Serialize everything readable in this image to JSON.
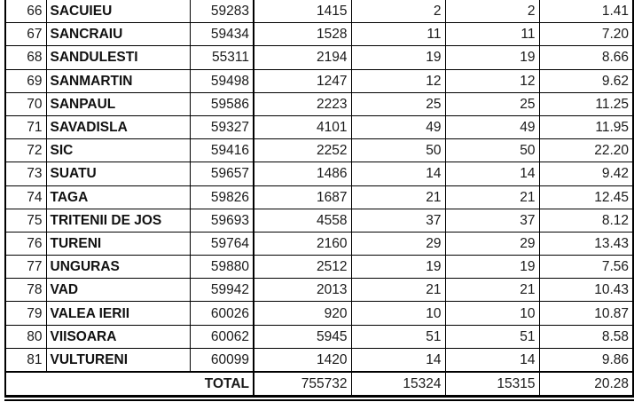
{
  "rows": [
    {
      "nr": "66",
      "name": "SACUIEU",
      "code": "59283",
      "c1": "1415",
      "c2": "2",
      "c3": "2",
      "c4": "1.41"
    },
    {
      "nr": "67",
      "name": "SANCRAIU",
      "code": "59434",
      "c1": "1528",
      "c2": "11",
      "c3": "11",
      "c4": "7.20"
    },
    {
      "nr": "68",
      "name": "SANDULESTI",
      "code": "55311",
      "c1": "2194",
      "c2": "19",
      "c3": "19",
      "c4": "8.66"
    },
    {
      "nr": "69",
      "name": "SANMARTIN",
      "code": "59498",
      "c1": "1247",
      "c2": "12",
      "c3": "12",
      "c4": "9.62"
    },
    {
      "nr": "70",
      "name": "SANPAUL",
      "code": "59586",
      "c1": "2223",
      "c2": "25",
      "c3": "25",
      "c4": "11.25"
    },
    {
      "nr": "71",
      "name": "SAVADISLA",
      "code": "59327",
      "c1": "4101",
      "c2": "49",
      "c3": "49",
      "c4": "11.95"
    },
    {
      "nr": "72",
      "name": "SIC",
      "code": "59416",
      "c1": "2252",
      "c2": "50",
      "c3": "50",
      "c4": "22.20"
    },
    {
      "nr": "73",
      "name": "SUATU",
      "code": "59657",
      "c1": "1486",
      "c2": "14",
      "c3": "14",
      "c4": "9.42"
    },
    {
      "nr": "74",
      "name": "TAGA",
      "code": "59826",
      "c1": "1687",
      "c2": "21",
      "c3": "21",
      "c4": "12.45"
    },
    {
      "nr": "75",
      "name": "TRITENII DE JOS",
      "code": "59693",
      "c1": "4558",
      "c2": "37",
      "c3": "37",
      "c4": "8.12"
    },
    {
      "nr": "76",
      "name": "TURENI",
      "code": "59764",
      "c1": "2160",
      "c2": "29",
      "c3": "29",
      "c4": "13.43"
    },
    {
      "nr": "77",
      "name": "UNGURAS",
      "code": "59880",
      "c1": "2512",
      "c2": "19",
      "c3": "19",
      "c4": "7.56"
    },
    {
      "nr": "78",
      "name": "VAD",
      "code": "59942",
      "c1": "2013",
      "c2": "21",
      "c3": "21",
      "c4": "10.43"
    },
    {
      "nr": "79",
      "name": "VALEA IERII",
      "code": "60026",
      "c1": "920",
      "c2": "10",
      "c3": "10",
      "c4": "10.87"
    },
    {
      "nr": "80",
      "name": "VIISOARA",
      "code": "60062",
      "c1": "5945",
      "c2": "51",
      "c3": "51",
      "c4": "8.58"
    },
    {
      "nr": "81",
      "name": "VULTURENI",
      "code": "60099",
      "c1": "1420",
      "c2": "14",
      "c3": "14",
      "c4": "9.86"
    }
  ],
  "total": {
    "label": "TOTAL",
    "c1": "755732",
    "c2": "15324",
    "c3": "15315",
    "c4": "20.28"
  }
}
